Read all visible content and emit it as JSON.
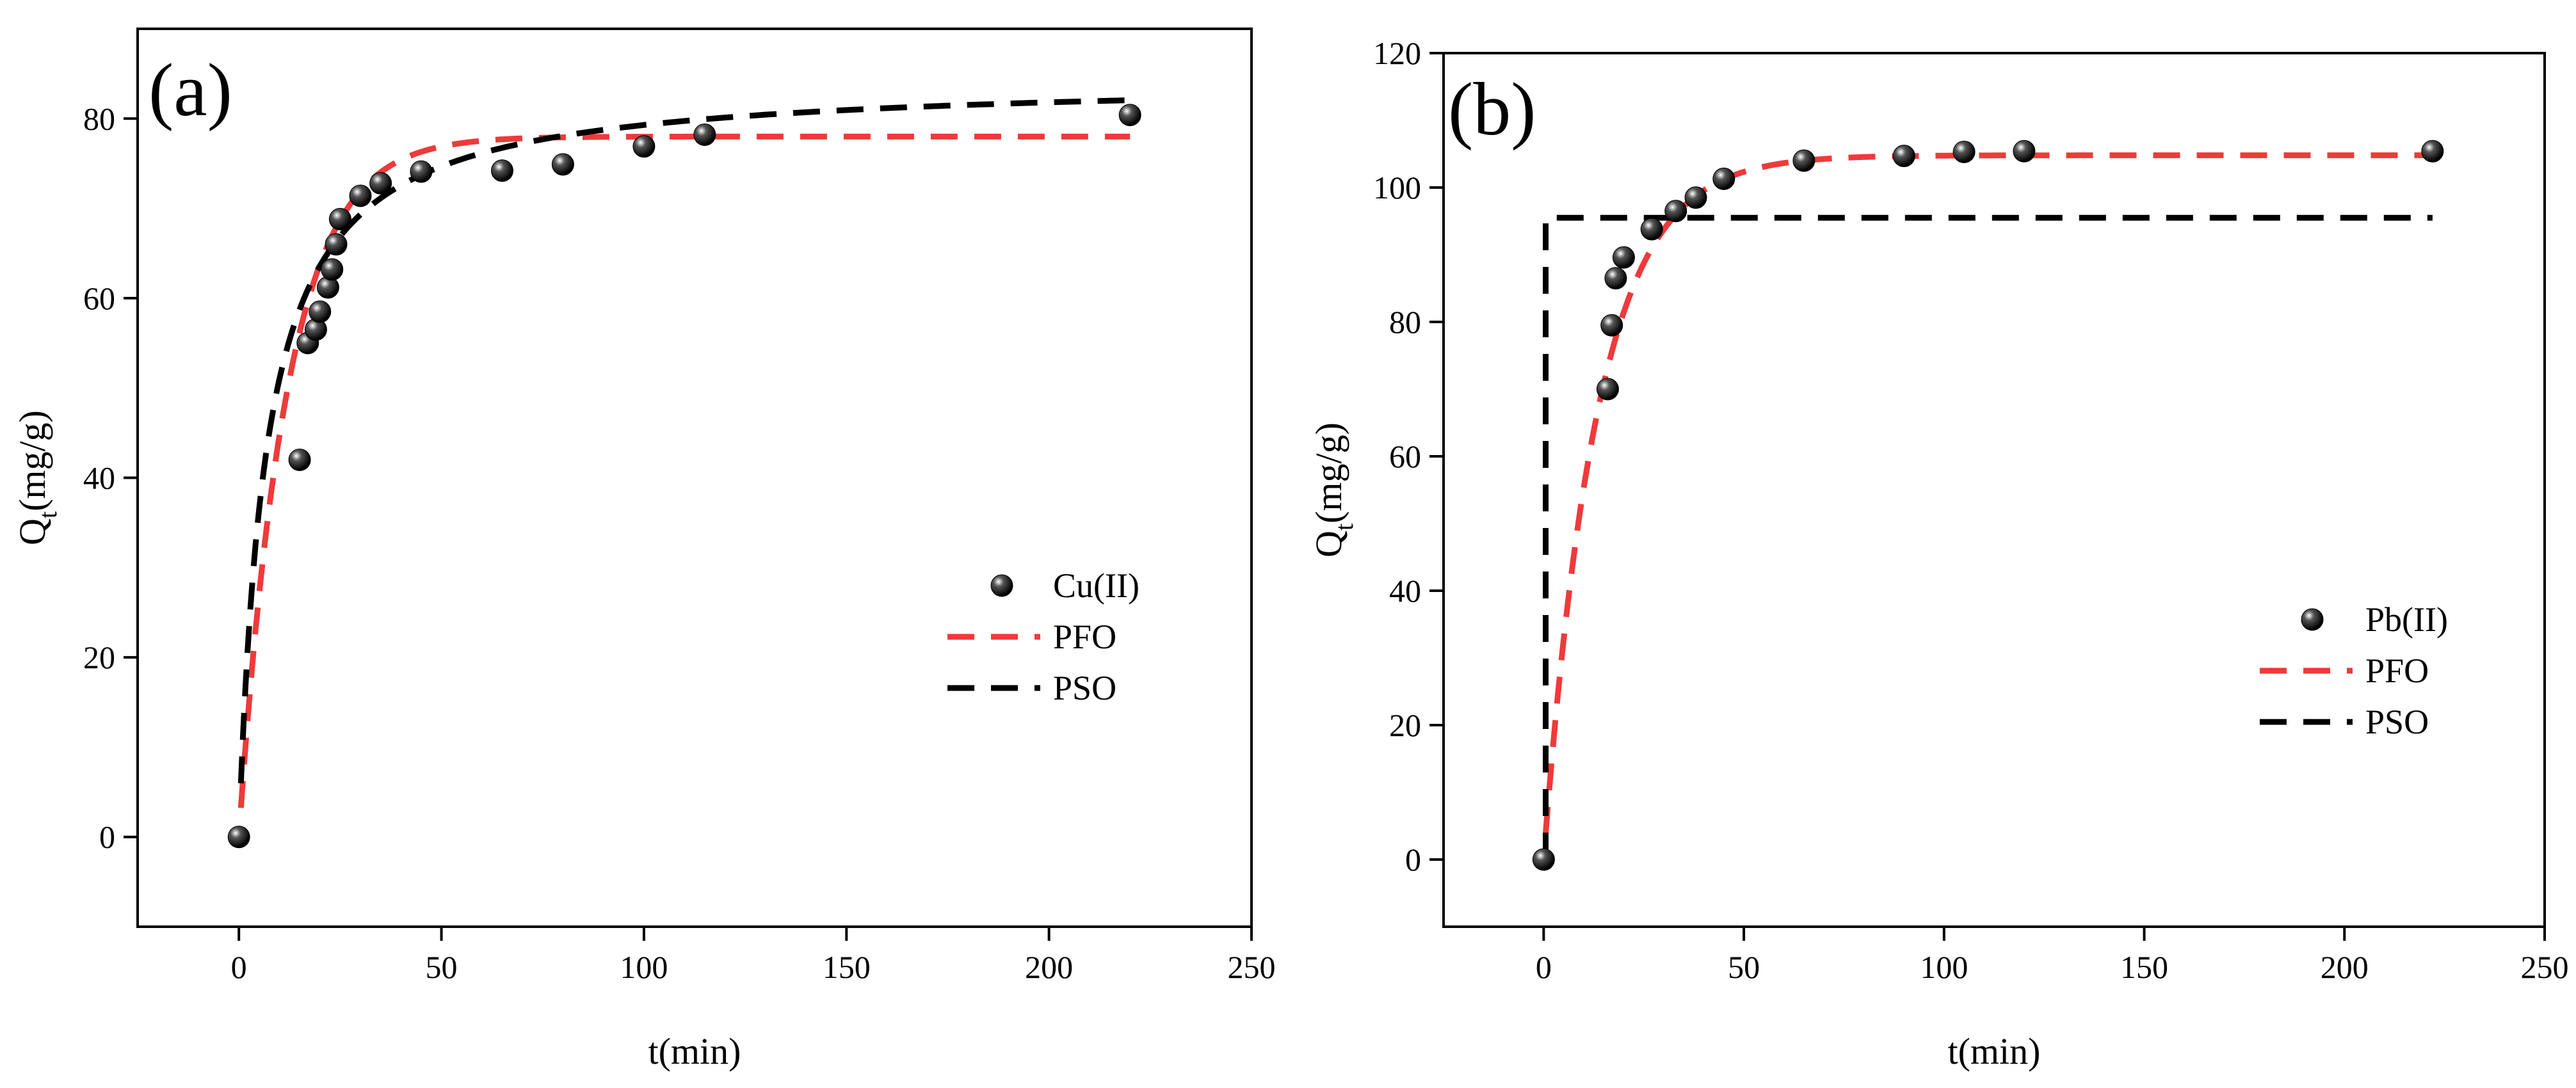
{
  "chart_data": [
    {
      "type": "scatter",
      "panel_label": "(a)",
      "xlabel": "t(min)",
      "ylabel": {
        "main": "Q",
        "sub": "t",
        "rest": "(mg/g)"
      },
      "xlim": [
        -25,
        250
      ],
      "ylim": [
        -10,
        90
      ],
      "xticks": [
        0,
        50,
        100,
        150,
        200,
        250
      ],
      "yticks": [
        0,
        20,
        40,
        60,
        80
      ],
      "legend_position": "center-right",
      "series": [
        {
          "name": "Cu(II)",
          "kind": "markers",
          "color": "#000000",
          "x": [
            0,
            15,
            17,
            19,
            20,
            22,
            23,
            24,
            25,
            30,
            35,
            45,
            65,
            80,
            100,
            115,
            220
          ],
          "y": [
            0,
            42,
            55,
            56.5,
            58.5,
            61.2,
            63.2,
            66,
            68.8,
            71.4,
            72.8,
            74.1,
            74.2,
            74.9,
            76.9,
            78.2,
            80.4
          ]
        },
        {
          "name": "PFO",
          "kind": "dashed-line",
          "color": "#ee3a3a",
          "model": "pfo",
          "params": {
            "qe": 78.0,
            "k": 0.085,
            "x_start": 0.5,
            "x_end": 220
          }
        },
        {
          "name": "PSO",
          "kind": "dashed-line",
          "color": "#000000",
          "model": "pso",
          "params": {
            "qe": 84.5,
            "k": 0.0018,
            "x_start": 0.5,
            "x_end": 220
          }
        }
      ]
    },
    {
      "type": "scatter",
      "panel_label": "(b)",
      "xlabel": "t(min)",
      "ylabel": {
        "main": "Q",
        "sub": "t",
        "rest": "(mg/g)"
      },
      "xlim": [
        -25,
        250
      ],
      "ylim": [
        -10,
        120
      ],
      "xticks": [
        0,
        50,
        100,
        150,
        200,
        250
      ],
      "yticks": [
        0,
        20,
        40,
        60,
        80,
        100,
        120
      ],
      "legend_position": "lower-right",
      "series": [
        {
          "name": "Pb(II)",
          "kind": "markers",
          "color": "#000000",
          "x": [
            0,
            16,
            17,
            18,
            20,
            27,
            33,
            38,
            45,
            65,
            90,
            105,
            120,
            222
          ],
          "y": [
            0,
            70,
            79.5,
            86.5,
            89.6,
            93.8,
            96.5,
            98.5,
            101.3,
            104,
            104.7,
            105.3,
            105.4,
            105.4
          ]
        },
        {
          "name": "PFO",
          "kind": "dashed-line",
          "color": "#ee3a3a",
          "model": "pfo",
          "params": {
            "qe": 104.8,
            "k": 0.075,
            "x_start": 0.5,
            "x_end": 222
          }
        },
        {
          "name": "PSO",
          "kind": "dashed-line",
          "color": "#000000",
          "model": "step",
          "params": {
            "qe": 95.5,
            "x_start": 0.5,
            "x_end": 222
          }
        }
      ]
    }
  ]
}
